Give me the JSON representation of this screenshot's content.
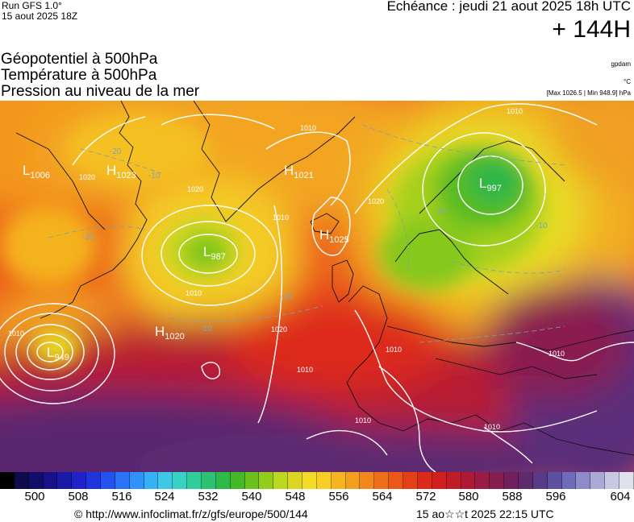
{
  "header": {
    "run_label": "Run GFS 1.0°",
    "run_date": "15 aout 2025 18Z",
    "echeance": "Echéance : jeudi 21 aout 2025 18h UTC",
    "lead_time": "+ 144H"
  },
  "variables": [
    "Géopotentiel à 500hPa",
    "Température à 500hPa",
    "Pression au niveau de la mer"
  ],
  "units": {
    "geopotential": "gpdam",
    "temperature": "°C",
    "pressure_range": "[Max 1026.5 | Min 948.9] hPa"
  },
  "pressure_centers": [
    {
      "type": "L",
      "value": "1006"
    },
    {
      "type": "H",
      "value": "1023"
    },
    {
      "type": "H",
      "value": "1021"
    },
    {
      "type": "L",
      "value": "987"
    },
    {
      "type": "H",
      "value": "1025"
    },
    {
      "type": "H",
      "value": "1020"
    },
    {
      "type": "L",
      "value": "949"
    },
    {
      "type": "L",
      "value": "997"
    }
  ],
  "isobar_labels": [
    "1010",
    "1020",
    "1020",
    "1010",
    "1020",
    "1010",
    "1010",
    "1020",
    "1010",
    "1010",
    "1010",
    "1010",
    "1010",
    "1010"
  ],
  "temperature_labels": [
    "-20",
    "-20",
    "-10",
    "-10",
    "-10",
    "-10",
    "-10"
  ],
  "colorbar": {
    "colors": [
      "#000000",
      "#0c0c4a",
      "#100e68",
      "#18128a",
      "#1a1aa6",
      "#1e22c8",
      "#2036dc",
      "#2352ee",
      "#2a72f6",
      "#2f92fa",
      "#35b2f6",
      "#3cc8e6",
      "#38d2c4",
      "#30cc9a",
      "#2cc272",
      "#2eba46",
      "#44b826",
      "#6cc01c",
      "#94cc1c",
      "#bcd81e",
      "#ded422",
      "#f2dc26",
      "#f8ce24",
      "#f6b420",
      "#f4a01e",
      "#f2881c",
      "#ee701a",
      "#ea5818",
      "#e44018",
      "#dc2a1a",
      "#d0201e",
      "#c01c28",
      "#ae1a36",
      "#9a1c44",
      "#861e52",
      "#70205c",
      "#5e2a6e",
      "#583a86",
      "#5c50a0",
      "#6e6cb8",
      "#8c8cc8",
      "#aaaad6",
      "#c8c8e2",
      "#e0e0ec"
    ],
    "tick_labels": [
      "500",
      "508",
      "516",
      "524",
      "532",
      "540",
      "548",
      "556",
      "564",
      "572",
      "580",
      "588",
      "596",
      "604"
    ]
  },
  "footer": {
    "copyright": "© http://www.infoclimat.fr/z/gfs/europe/500/144",
    "valid_stamp": "15 ao☆☆t 2025 22:15 UTC"
  }
}
